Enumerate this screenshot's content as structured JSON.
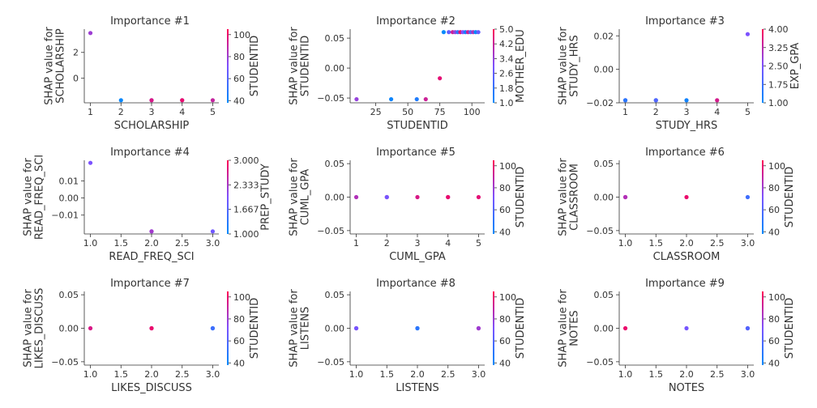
{
  "chart_data": [
    {
      "type": "scatter",
      "title": "Importance #1",
      "xlabel": "SCHOLARSHIP",
      "ylabel": "SHAP value for\nSCHOLARSHIP",
      "colorbar_label": "STUDENTID",
      "xlim": [
        0.8,
        5.2
      ],
      "ylim": [
        -1.9,
        3.8
      ],
      "xticks": [
        1,
        2,
        3,
        4,
        5
      ],
      "xtick_labels": [
        "1",
        "2",
        "3",
        "4",
        "5"
      ],
      "yticks": [
        0,
        2
      ],
      "ytick_labels": [
        "0",
        "2"
      ],
      "color_range": [
        38,
        105
      ],
      "color_ticks": [
        40,
        60,
        80,
        100
      ],
      "color_tick_labels": [
        "40",
        "60",
        "80",
        "100"
      ],
      "points": [
        {
          "x": 1,
          "y": 3.5,
          "c": 80
        },
        {
          "x": 2,
          "y": -1.7,
          "c": 40
        },
        {
          "x": 3,
          "y": -1.7,
          "c": 75
        },
        {
          "x": 3,
          "y": -1.7,
          "c": 95
        },
        {
          "x": 4,
          "y": -1.7,
          "c": 70
        },
        {
          "x": 4,
          "y": -1.7,
          "c": 100
        },
        {
          "x": 5,
          "y": -1.7,
          "c": 90
        }
      ]
    },
    {
      "type": "scatter",
      "title": "Importance #2",
      "xlabel": "STUDENTID",
      "ylabel": "SHAP value for\nSTUDENTID",
      "colorbar_label": "MOTHER_EDU",
      "xlim": [
        5,
        110
      ],
      "ylim": [
        -0.058,
        0.065
      ],
      "xticks": [
        25,
        50,
        75,
        100
      ],
      "xtick_labels": [
        "25",
        "50",
        "75",
        "100"
      ],
      "yticks": [
        -0.05,
        0,
        0.05
      ],
      "ytick_labels": [
        "−0.05",
        "0.00",
        "0.05"
      ],
      "color_range": [
        1.0,
        5.0
      ],
      "color_ticks": [
        1.0,
        1.8,
        2.6,
        3.4,
        4.2,
        5.0
      ],
      "color_tick_labels": [
        "1.0",
        "1.8",
        "2.6",
        "3.4",
        "4.2",
        "5.0"
      ],
      "points": [
        {
          "x": 10,
          "y": -0.052,
          "c": 3.4
        },
        {
          "x": 37,
          "y": -0.052,
          "c": 1.2
        },
        {
          "x": 57,
          "y": -0.052,
          "c": 1.5
        },
        {
          "x": 64,
          "y": -0.052,
          "c": 4.2
        },
        {
          "x": 75,
          "y": -0.017,
          "c": 4.6
        },
        {
          "x": 78,
          "y": 0.06,
          "c": 1.0
        },
        {
          "x": 82,
          "y": 0.06,
          "c": 2.6
        },
        {
          "x": 85,
          "y": 0.06,
          "c": 4.2
        },
        {
          "x": 87,
          "y": 0.06,
          "c": 3.4
        },
        {
          "x": 89,
          "y": 0.06,
          "c": 1.8
        },
        {
          "x": 91,
          "y": 0.06,
          "c": 4.6
        },
        {
          "x": 93,
          "y": 0.06,
          "c": 3.0
        },
        {
          "x": 95,
          "y": 0.06,
          "c": 1.4
        },
        {
          "x": 97,
          "y": 0.06,
          "c": 4.2
        },
        {
          "x": 99,
          "y": 0.06,
          "c": 2.2
        },
        {
          "x": 101,
          "y": 0.06,
          "c": 3.8
        },
        {
          "x": 103,
          "y": 0.06,
          "c": 1.0
        },
        {
          "x": 105,
          "y": 0.06,
          "c": 2.6
        }
      ]
    },
    {
      "type": "scatter",
      "title": "Importance #3",
      "xlabel": "STUDY_HRS",
      "ylabel": "SHAP value for\nSTUDY_HRS",
      "colorbar_label": "EXP_GPA",
      "xlim": [
        0.8,
        5.2
      ],
      "ylim": [
        -0.02,
        0.024
      ],
      "xticks": [
        1,
        2,
        3,
        4,
        5
      ],
      "xtick_labels": [
        "1",
        "2",
        "3",
        "4",
        "5"
      ],
      "yticks": [
        -0.02,
        0,
        0.02
      ],
      "ytick_labels": [
        "−0.02",
        "0.00",
        "0.02"
      ],
      "color_range": [
        1.0,
        4.0
      ],
      "color_ticks": [
        1.0,
        1.75,
        2.5,
        3.25,
        4.0
      ],
      "color_tick_labels": [
        "1.00",
        "1.75",
        "2.50",
        "3.25",
        "4.00"
      ],
      "points": [
        {
          "x": 1,
          "y": -0.0185,
          "c": 2.5
        },
        {
          "x": 1,
          "y": -0.0185,
          "c": 1.5
        },
        {
          "x": 2,
          "y": -0.0185,
          "c": 1.0
        },
        {
          "x": 2,
          "y": -0.0185,
          "c": 2.0
        },
        {
          "x": 3,
          "y": -0.0185,
          "c": 1.2
        },
        {
          "x": 4,
          "y": -0.0185,
          "c": 3.5
        },
        {
          "x": 5,
          "y": 0.021,
          "c": 2.5
        }
      ]
    },
    {
      "type": "scatter",
      "title": "Importance #4",
      "xlabel": "READ_FREQ_SCI",
      "ylabel": "SHAP value for\nREAD_FREQ_SCI",
      "colorbar_label": "PREP_STUDY",
      "xlim": [
        0.9,
        3.1
      ],
      "ylim": [
        -0.021,
        0.022
      ],
      "xticks": [
        1.0,
        1.5,
        2.0,
        2.5,
        3.0
      ],
      "xtick_labels": [
        "1.0",
        "1.5",
        "2.0",
        "2.5",
        "3.0"
      ],
      "yticks": [
        -0.01,
        0,
        0.01
      ],
      "ytick_labels": [
        "−0.01",
        "0.00",
        "0.01"
      ],
      "color_range": [
        1.0,
        3.0
      ],
      "color_ticks": [
        1.0,
        1.667,
        2.333,
        3.0
      ],
      "color_tick_labels": [
        "1.000",
        "1.667",
        "2.333",
        "3.000"
      ],
      "points": [
        {
          "x": 1.0,
          "y": 0.0205,
          "c": 2.0
        },
        {
          "x": 2.0,
          "y": -0.0195,
          "c": 2.0
        },
        {
          "x": 2.0,
          "y": -0.0195,
          "c": 2.3
        },
        {
          "x": 3.0,
          "y": -0.0195,
          "c": 1.9
        }
      ]
    },
    {
      "type": "scatter",
      "title": "Importance #5",
      "xlabel": "CUML_GPA",
      "ylabel": "SHAP value for\nCUML_GPA",
      "colorbar_label": "STUDENTID",
      "xlim": [
        0.8,
        5.2
      ],
      "ylim": [
        -0.055,
        0.055
      ],
      "xticks": [
        1,
        2,
        3,
        4,
        5
      ],
      "xtick_labels": [
        "1",
        "2",
        "3",
        "4",
        "5"
      ],
      "yticks": [
        -0.05,
        0,
        0.05
      ],
      "ytick_labels": [
        "−0.05",
        "0.00",
        "0.05"
      ],
      "color_range": [
        38,
        105
      ],
      "color_ticks": [
        40,
        60,
        80,
        100
      ],
      "color_tick_labels": [
        "40",
        "60",
        "80",
        "100"
      ],
      "points": [
        {
          "x": 1,
          "y": 0,
          "c": 85
        },
        {
          "x": 2,
          "y": 0,
          "c": 90
        },
        {
          "x": 2,
          "y": 0,
          "c": 70
        },
        {
          "x": 3,
          "y": 0,
          "c": 95
        },
        {
          "x": 4,
          "y": 0,
          "c": 80
        },
        {
          "x": 4,
          "y": 0,
          "c": 100
        },
        {
          "x": 5,
          "y": 0,
          "c": 98
        }
      ]
    },
    {
      "type": "scatter",
      "title": "Importance #6",
      "xlabel": "CLASSROOM",
      "ylabel": "SHAP value for\nCLASSROOM",
      "colorbar_label": "STUDENTID",
      "xlim": [
        0.9,
        3.1
      ],
      "ylim": [
        -0.055,
        0.055
      ],
      "xticks": [
        1.0,
        1.5,
        2.0,
        2.5,
        3.0
      ],
      "xtick_labels": [
        "1.0",
        "1.5",
        "2.0",
        "2.5",
        "3.0"
      ],
      "yticks": [
        -0.05,
        0,
        0.05
      ],
      "ytick_labels": [
        "−0.05",
        "0.00",
        "0.05"
      ],
      "color_range": [
        38,
        105
      ],
      "color_ticks": [
        40,
        60,
        80,
        100
      ],
      "color_tick_labels": [
        "40",
        "60",
        "80",
        "100"
      ],
      "points": [
        {
          "x": 1.0,
          "y": 0,
          "c": 95
        },
        {
          "x": 1.0,
          "y": 0,
          "c": 85
        },
        {
          "x": 2.0,
          "y": 0,
          "c": 100
        },
        {
          "x": 3.0,
          "y": 0,
          "c": 55
        }
      ]
    },
    {
      "type": "scatter",
      "title": "Importance #7",
      "xlabel": "LIKES_DISCUSS",
      "ylabel": "SHAP value for\nLIKES_DISCUSS",
      "colorbar_label": "STUDENTID",
      "xlim": [
        0.9,
        3.1
      ],
      "ylim": [
        -0.055,
        0.055
      ],
      "xticks": [
        1.0,
        1.5,
        2.0,
        2.5,
        3.0
      ],
      "xtick_labels": [
        "1.0",
        "1.5",
        "2.0",
        "2.5",
        "3.0"
      ],
      "yticks": [
        -0.05,
        0,
        0.05
      ],
      "ytick_labels": [
        "−0.05",
        "0.00",
        "0.05"
      ],
      "color_range": [
        38,
        105
      ],
      "color_ticks": [
        40,
        60,
        80,
        100
      ],
      "color_tick_labels": [
        "40",
        "60",
        "80",
        "100"
      ],
      "points": [
        {
          "x": 1.0,
          "y": 0,
          "c": 95
        },
        {
          "x": 2.0,
          "y": 0,
          "c": 85
        },
        {
          "x": 2.0,
          "y": 0,
          "c": 100
        },
        {
          "x": 3.0,
          "y": 0,
          "c": 40
        },
        {
          "x": 3.0,
          "y": 0,
          "c": 55
        }
      ]
    },
    {
      "type": "scatter",
      "title": "Importance #8",
      "xlabel": "LISTENS",
      "ylabel": "SHAP value for\nLISTENS",
      "colorbar_label": "STUDENTID",
      "xlim": [
        0.9,
        3.1
      ],
      "ylim": [
        -0.055,
        0.055
      ],
      "xticks": [
        1.0,
        1.5,
        2.0,
        2.5,
        3.0
      ],
      "xtick_labels": [
        "1.0",
        "1.5",
        "2.0",
        "2.5",
        "3.0"
      ],
      "yticks": [
        -0.05,
        0,
        0.05
      ],
      "ytick_labels": [
        "−0.05",
        "0.00",
        "0.05"
      ],
      "color_range": [
        38,
        105
      ],
      "color_ticks": [
        40,
        60,
        80,
        100
      ],
      "color_tick_labels": [
        "40",
        "60",
        "80",
        "100"
      ],
      "points": [
        {
          "x": 1.0,
          "y": 0,
          "c": 85
        },
        {
          "x": 1.0,
          "y": 0,
          "c": 70
        },
        {
          "x": 2.0,
          "y": 0,
          "c": 40
        },
        {
          "x": 2.0,
          "y": 0,
          "c": 50
        },
        {
          "x": 3.0,
          "y": 0,
          "c": 95
        },
        {
          "x": 3.0,
          "y": 0,
          "c": 80
        }
      ]
    },
    {
      "type": "scatter",
      "title": "Importance #9",
      "xlabel": "NOTES",
      "ylabel": "SHAP value for\nNOTES",
      "colorbar_label": "STUDENTID",
      "xlim": [
        0.9,
        3.1
      ],
      "ylim": [
        -0.055,
        0.055
      ],
      "xticks": [
        1.0,
        1.5,
        2.0,
        2.5,
        3.0
      ],
      "xtick_labels": [
        "1.0",
        "1.5",
        "2.0",
        "2.5",
        "3.0"
      ],
      "yticks": [
        -0.05,
        0,
        0.05
      ],
      "ytick_labels": [
        "−0.05",
        "0.00",
        "0.05"
      ],
      "color_range": [
        38,
        105
      ],
      "color_ticks": [
        40,
        60,
        80,
        100
      ],
      "color_tick_labels": [
        "40",
        "60",
        "80",
        "100"
      ],
      "points": [
        {
          "x": 1.0,
          "y": 0,
          "c": 100
        },
        {
          "x": 2.0,
          "y": 0,
          "c": 70
        },
        {
          "x": 3.0,
          "y": 0,
          "c": 80
        },
        {
          "x": 3.0,
          "y": 0,
          "c": 60
        }
      ]
    }
  ],
  "colormap": {
    "low": "#008afb",
    "mid": "#7c52ff",
    "high": "#ff0052"
  }
}
